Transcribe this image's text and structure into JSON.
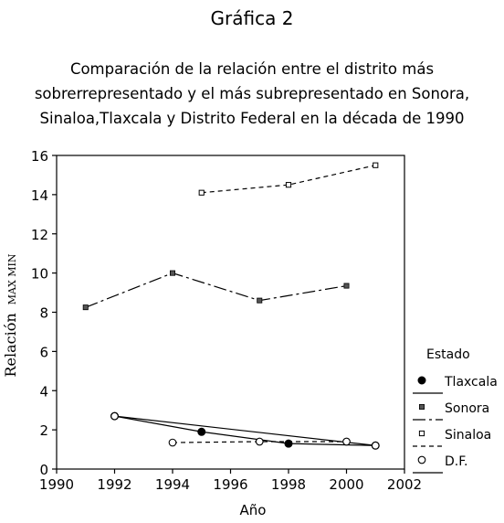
{
  "page": {
    "figure_title": "Gráfica 2",
    "subtitle": "Comparación de la relación entre el distrito más\nsobrerrepresentado y el más subrepresentado en Sonora,\nSinaloa,Tlaxcala y Distrito Federal en la década de 1990"
  },
  "chart_data": {
    "type": "line",
    "title": "Gráfica 2",
    "subtitle": "Comparación de la relación entre el distrito más sobrerrepresentado y el más subrepresentado en Sonora, Sinaloa,Tlaxcala y Distrito Federal en la década de 1990",
    "xlabel": "Año",
    "ylabel_main": "Relación",
    "ylabel_sub": "MAX MIN",
    "xlim": [
      1990,
      2002
    ],
    "ylim": [
      0,
      16
    ],
    "x_ticks": [
      1990,
      1992,
      1994,
      1996,
      1998,
      2000,
      2002
    ],
    "y_ticks": [
      0,
      2,
      4,
      6,
      8,
      10,
      12,
      14,
      16
    ],
    "grid": false,
    "legend_title": "Estado",
    "legend_position": "right",
    "series": [
      {
        "name": "Tlaxcala",
        "marker": "filled-circle",
        "line_style": "solid",
        "x": [
          1992,
          1995,
          1998,
          2001
        ],
        "y": [
          2.7,
          1.9,
          1.3,
          1.2
        ]
      },
      {
        "name": "Sonora",
        "marker": "small-square",
        "line_style": "long-dash",
        "x": [
          1991,
          1994,
          1997,
          2000
        ],
        "y": [
          8.25,
          10.0,
          8.6,
          9.35
        ]
      },
      {
        "name": "Sinaloa",
        "marker": "small-open-square",
        "line_style": "dashed",
        "x": [
          1995,
          1998,
          2001
        ],
        "y": [
          14.1,
          14.5,
          15.5
        ]
      },
      {
        "name": "D.F.",
        "marker": "open-circle",
        "line_style": "solid",
        "x": [
          1992,
          2001
        ],
        "y": [
          2.7,
          1.2
        ]
      },
      {
        "name": "",
        "marker": "open-circle",
        "line_style": "dashed",
        "x": [
          1994,
          1997,
          2000
        ],
        "y": [
          1.35,
          1.4,
          1.4
        ]
      }
    ]
  }
}
